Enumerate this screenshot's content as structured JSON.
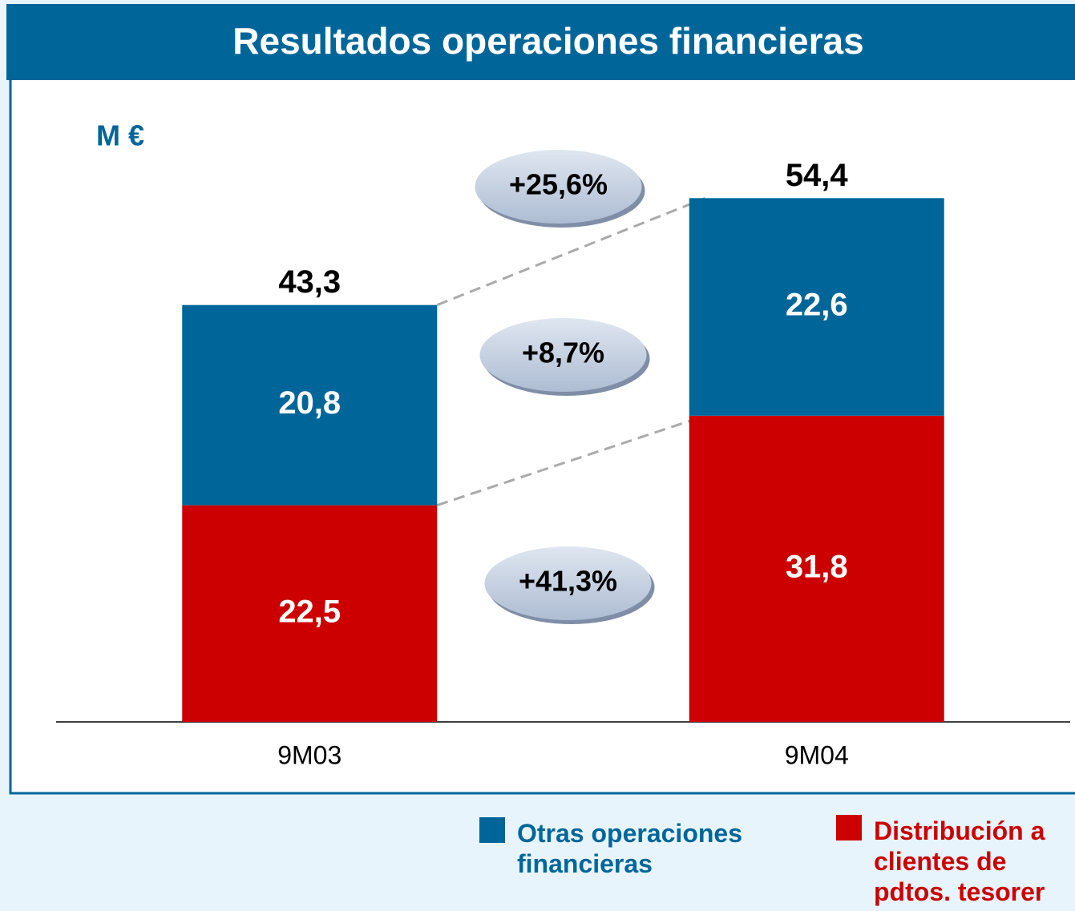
{
  "chart_data": {
    "type": "stacked_bar",
    "title": "Resultados operaciones financieras",
    "unit_label": "M €",
    "categories": [
      "9M03",
      "9M04"
    ],
    "series": [
      {
        "name": "Distribución a clientes de pdtos. tesorer",
        "color": "#cc0000",
        "values": [
          22.5,
          31.8
        ],
        "value_labels": [
          "22,5",
          "31,8"
        ]
      },
      {
        "name": "Otras operaciones financieras",
        "color": "#006699",
        "values": [
          20.8,
          22.6
        ],
        "value_labels": [
          "20,8",
          "22,6"
        ]
      }
    ],
    "totals": [
      43.3,
      54.4
    ],
    "total_labels": [
      "43,3",
      "54,4"
    ],
    "annotations": [
      "+25,6%",
      "+8,7%",
      "+41,3%"
    ],
    "ylim": [
      0,
      60
    ]
  }
}
